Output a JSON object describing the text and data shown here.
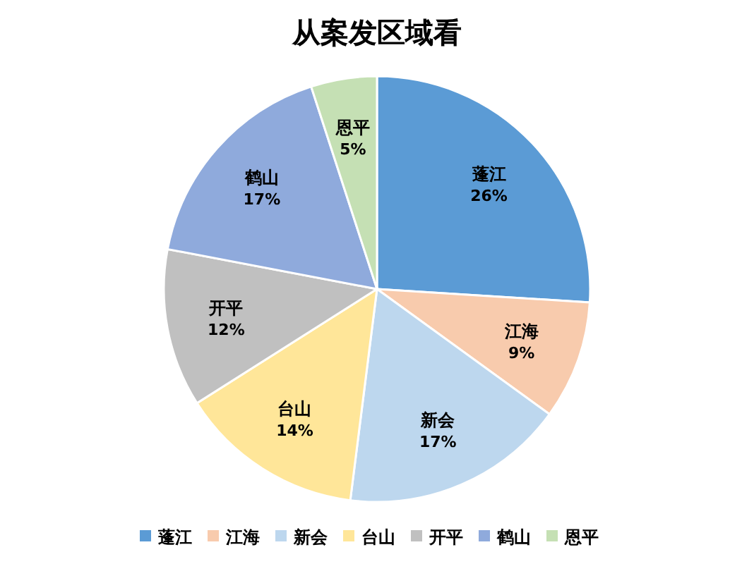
{
  "chart_data": {
    "type": "pie",
    "title": "从案发区域看",
    "categories": [
      "蓬江",
      "江海",
      "新会",
      "台山",
      "开平",
      "鹤山",
      "恩平"
    ],
    "values": [
      26,
      9,
      17,
      14,
      12,
      17,
      5
    ],
    "colors": [
      "#5b9bd5",
      "#f8cbad",
      "#bdd7ee",
      "#ffe699",
      "#c0c0c0",
      "#8faadc",
      "#c5e0b4"
    ],
    "value_labels": [
      "26%",
      "9%",
      "17%",
      "14%",
      "12%",
      "17%",
      "5%"
    ],
    "legend": "bottom"
  }
}
